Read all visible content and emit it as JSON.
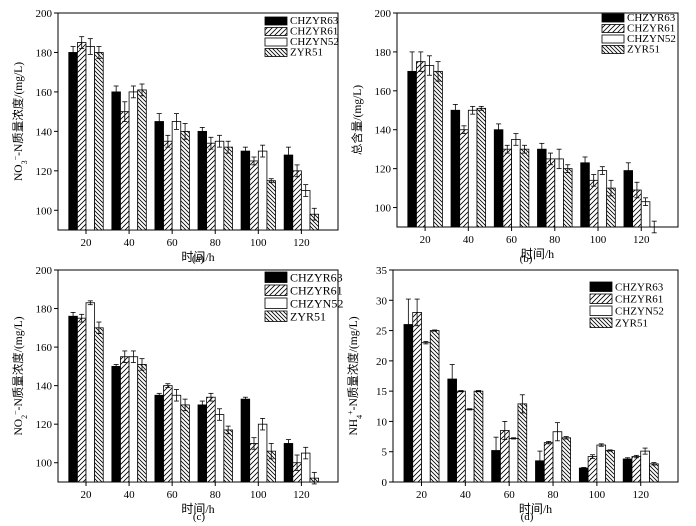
{
  "legend_labels": [
    "CHZYR63",
    "CHZYR61",
    "CHZYN52",
    "ZYR51"
  ],
  "x_unit_label": "时间/h",
  "colors": {
    "bar_black": "#000000",
    "axis": "#000000",
    "background": "#ffffff"
  },
  "chart_data": [
    {
      "type": "bar",
      "panel_label": "(a)",
      "title": "",
      "xlabel": "时间/h",
      "ylabel": "NO3-N质量浓度/(mg/L)",
      "ylabel_parts": {
        "pre": "NO",
        "sub": "3",
        "sup": "−",
        "post": "-N质量浓度/(mg/L)"
      },
      "ylim": [
        90,
        200
      ],
      "yticks": [
        100,
        120,
        140,
        160,
        180,
        200
      ],
      "categories": [
        "20",
        "40",
        "60",
        "80",
        "100",
        "120"
      ],
      "series": [
        {
          "name": "CHZYR63",
          "values": [
            180,
            160,
            145,
            140,
            130,
            128
          ],
          "errors": [
            3,
            3,
            4,
            2,
            2,
            4
          ]
        },
        {
          "name": "CHZYR61",
          "values": [
            185,
            150,
            135,
            134,
            125,
            120
          ],
          "errors": [
            3,
            5,
            3,
            3,
            2,
            3
          ]
        },
        {
          "name": "CHZYN52",
          "values": [
            183,
            160,
            145,
            135,
            130,
            110
          ],
          "errors": [
            4,
            3,
            4,
            3,
            3,
            3
          ]
        },
        {
          "name": "ZYR51",
          "values": [
            180,
            161,
            140,
            132,
            115,
            98
          ],
          "errors": [
            3,
            3,
            4,
            3,
            1,
            3
          ]
        }
      ]
    },
    {
      "type": "bar",
      "panel_label": "(b)",
      "title": "",
      "xlabel": "时间/h",
      "ylabel": "总含量/(mg/L)",
      "ylabel_parts": {
        "pre": "总含量/(mg/L)",
        "sub": "",
        "sup": "",
        "post": ""
      },
      "ylim": [
        90,
        200
      ],
      "yticks": [
        100,
        120,
        140,
        160,
        180,
        200
      ],
      "categories": [
        "20",
        "40",
        "60",
        "80",
        "100",
        "120"
      ],
      "series": [
        {
          "name": "CHZYR63",
          "values": [
            170,
            150,
            140,
            130,
            123,
            119
          ],
          "errors": [
            10,
            3,
            3,
            3,
            3,
            4
          ]
        },
        {
          "name": "CHZYR61",
          "values": [
            175,
            140,
            130,
            125,
            114,
            109
          ],
          "errors": [
            5,
            2,
            2,
            3,
            3,
            4
          ]
        },
        {
          "name": "CHZYN52",
          "values": [
            173,
            150,
            135,
            125,
            119,
            103
          ],
          "errors": [
            5,
            2,
            3,
            5,
            2,
            2
          ]
        },
        {
          "name": "ZYR51",
          "values": [
            170,
            151,
            130,
            120,
            110,
            90
          ],
          "errors": [
            5,
            1,
            2,
            2,
            4,
            3
          ]
        }
      ]
    },
    {
      "type": "bar",
      "panel_label": "(c)",
      "title": "",
      "xlabel": "时间/h",
      "ylabel": "NO2-N质量浓度/(mg/L)",
      "ylabel_parts": {
        "pre": "NO",
        "sub": "2",
        "sup": "−",
        "post": "-N质量浓度/(mg/L)"
      },
      "ylim": [
        90,
        200
      ],
      "yticks": [
        100,
        120,
        140,
        160,
        180,
        200
      ],
      "categories": [
        "20",
        "40",
        "60",
        "80",
        "100",
        "120"
      ],
      "series": [
        {
          "name": "CHZYR63",
          "values": [
            176,
            150,
            135,
            130,
            133,
            110
          ],
          "errors": [
            2,
            1,
            1,
            2,
            1,
            2
          ]
        },
        {
          "name": "CHZYR61",
          "values": [
            175,
            155,
            140,
            134,
            110,
            100
          ],
          "errors": [
            2,
            3,
            1,
            2,
            3,
            4
          ]
        },
        {
          "name": "CHZYN52",
          "values": [
            183,
            155,
            135,
            125,
            120,
            105
          ],
          "errors": [
            1,
            3,
            3,
            3,
            3,
            3
          ]
        },
        {
          "name": "ZYR51",
          "values": [
            170,
            151,
            130,
            117,
            106,
            92
          ],
          "errors": [
            3,
            3,
            3,
            2,
            4,
            3
          ]
        }
      ]
    },
    {
      "type": "bar",
      "panel_label": "(d)",
      "title": "",
      "xlabel": "时间/h",
      "ylabel": "NH4+-N质量浓度/(mg/L)",
      "ylabel_parts": {
        "pre": "NH",
        "sub": "4",
        "sup": "+",
        "post": "-N质量浓度/(mg/L)"
      },
      "ylim": [
        0,
        35
      ],
      "yticks": [
        0,
        5,
        10,
        15,
        20,
        25,
        30,
        35
      ],
      "categories": [
        "20",
        "40",
        "60",
        "80",
        "100",
        "120"
      ],
      "series": [
        {
          "name": "CHZYR63",
          "values": [
            26,
            17,
            5.2,
            3.5,
            2.3,
            3.8
          ],
          "errors": [
            4.2,
            2.4,
            2.2,
            1.6,
            0.1,
            0.2
          ]
        },
        {
          "name": "CHZYR61",
          "values": [
            28,
            15,
            8.5,
            6.5,
            4.2,
            4.2
          ],
          "errors": [
            2.2,
            0.1,
            1.5,
            0.2,
            0.3,
            0.2
          ]
        },
        {
          "name": "CHZYN52",
          "values": [
            23,
            12,
            7.2,
            8.3,
            6.1,
            5.1
          ],
          "errors": [
            0.2,
            0.1,
            0.1,
            1.5,
            0.2,
            0.5
          ]
        },
        {
          "name": "ZYR51",
          "values": [
            25,
            15,
            12.9,
            7.3,
            5.2,
            3.0
          ],
          "errors": [
            0.1,
            0.1,
            1.5,
            0.2,
            0.1,
            0.2
          ]
        }
      ]
    }
  ]
}
